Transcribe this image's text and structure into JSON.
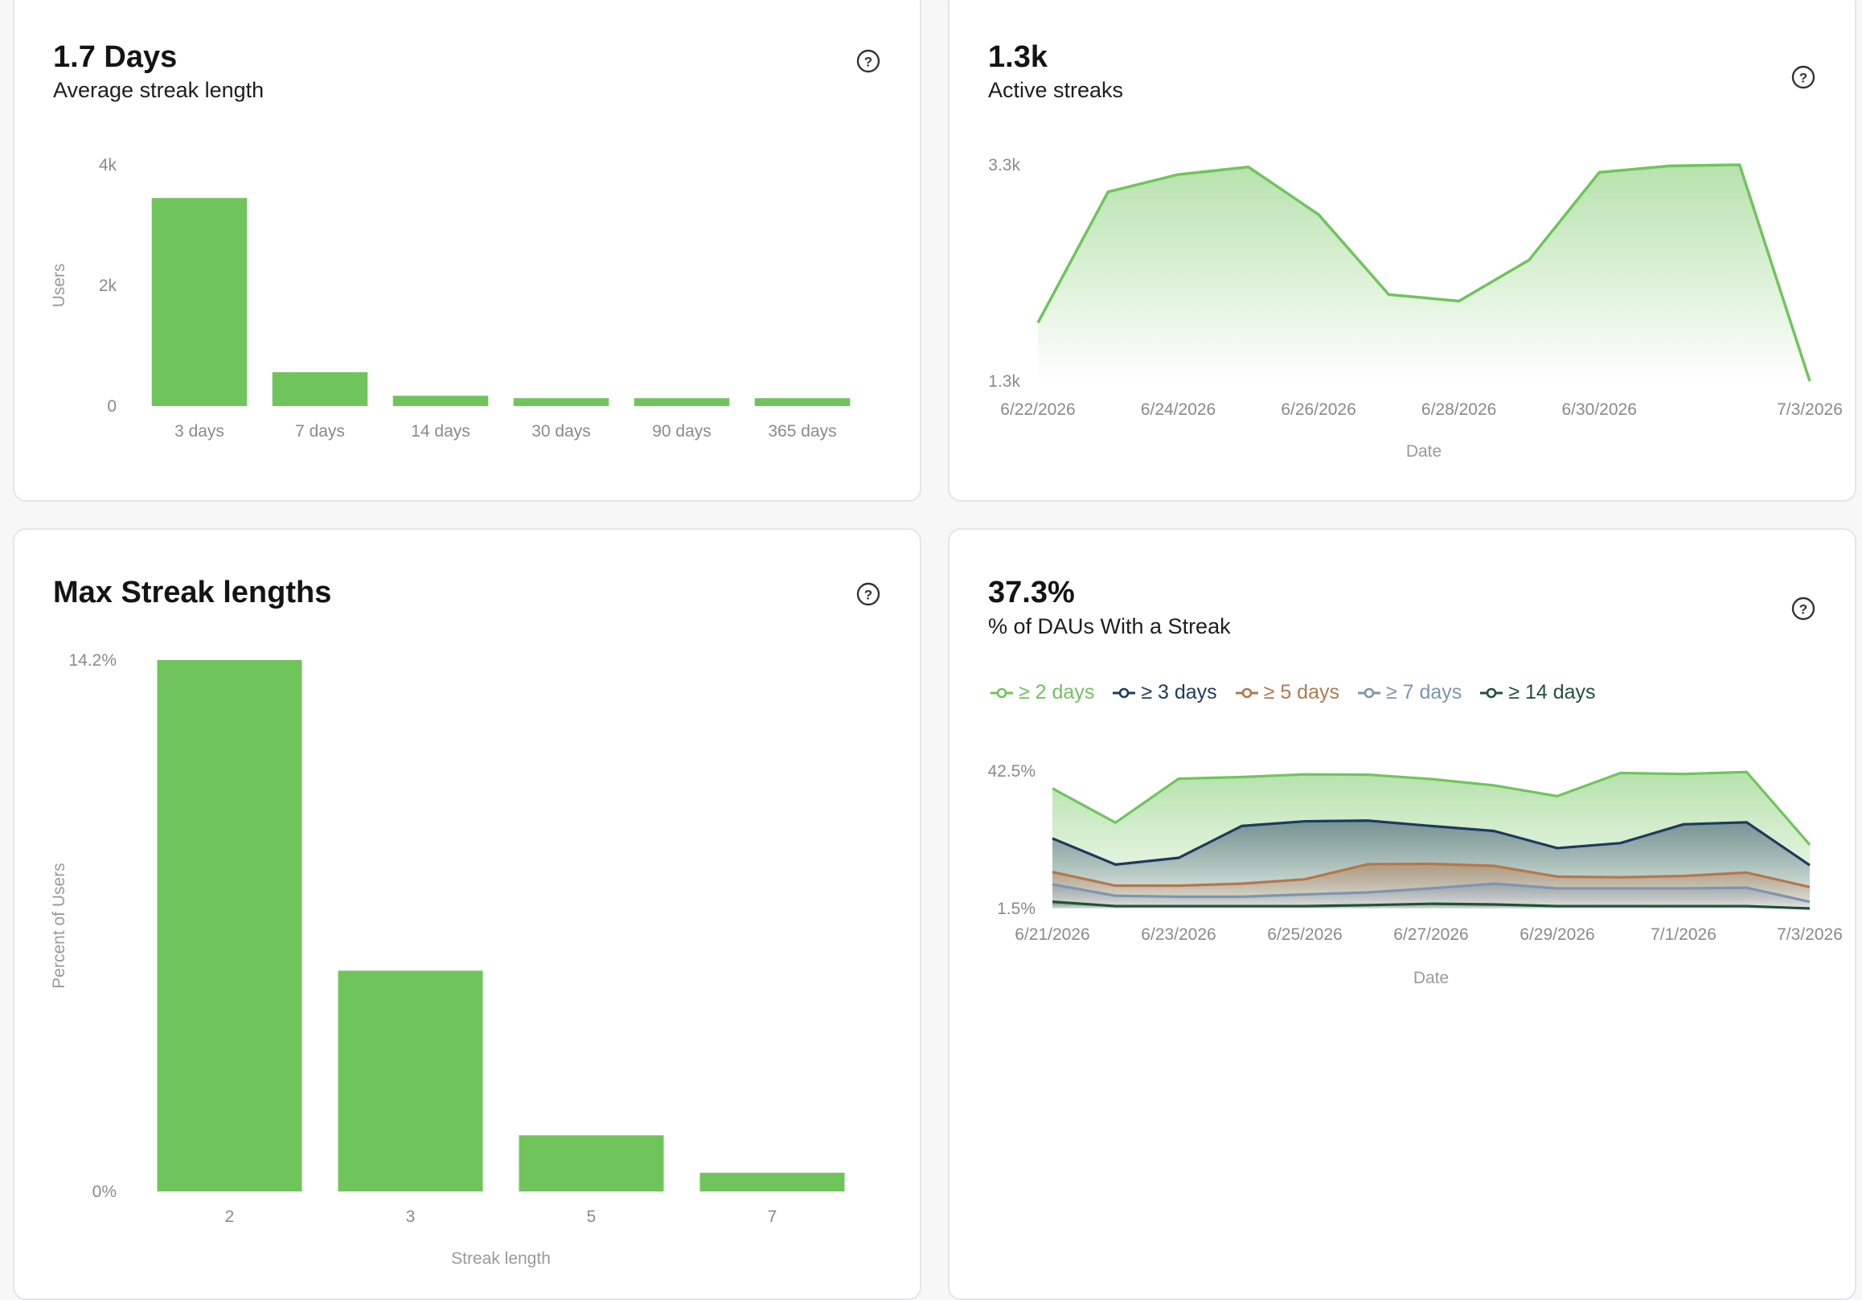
{
  "cards": {
    "streak_length": {
      "title": "1.7 Days",
      "subtitle": "Average streak length",
      "y_label": "Users",
      "x_label": ""
    },
    "active_streaks": {
      "title": "1.3k",
      "subtitle": "Active streaks",
      "x_label": "Date"
    },
    "max_streak": {
      "title": "Max Streak lengths",
      "y_label": "Percent of Users",
      "x_label": "Streak length"
    },
    "dau_streak": {
      "title": "37.3%",
      "subtitle": "% of DAUs With a Streak",
      "x_label": "Date"
    }
  },
  "chart_data": [
    {
      "id": "streak_length",
      "type": "bar",
      "categories": [
        "3 days",
        "7 days",
        "14 days",
        "30 days",
        "90 days",
        "365 days"
      ],
      "values": [
        3450,
        560,
        170,
        130,
        130,
        130
      ],
      "ylim": [
        0,
        4000
      ],
      "yticks": [
        0,
        2000,
        4000
      ],
      "ytick_labels": [
        "0",
        "2k",
        "4k"
      ],
      "ylabel": "Users",
      "color": "#6fc55b",
      "grid": false
    },
    {
      "id": "active_streaks",
      "type": "area",
      "x": [
        "6/22/2026",
        "6/23/2026",
        "6/24/2026",
        "6/25/2026",
        "6/26/2026",
        "6/27/2026",
        "6/28/2026",
        "6/29/2026",
        "6/30/2026",
        "7/1/2026",
        "7/2/2026",
        "7/3/2026"
      ],
      "values": [
        1840,
        3050,
        3210,
        3280,
        2840,
        2100,
        2040,
        2420,
        3230,
        3290,
        3300,
        1300
      ],
      "xtick_labels": [
        "6/22/2026",
        "6/24/2026",
        "6/26/2026",
        "6/28/2026",
        "6/30/2026",
        "7/3/2026"
      ],
      "ylim": [
        1300,
        3300
      ],
      "ytick_labels": [
        "1.3k",
        "3.3k"
      ],
      "xlabel": "Date",
      "color": "#6fc55b",
      "grid": false
    },
    {
      "id": "max_streak",
      "type": "bar",
      "categories": [
        "2",
        "3",
        "5",
        "7"
      ],
      "values": [
        14.2,
        5.9,
        1.5,
        0.5
      ],
      "ylim": [
        0,
        14.2
      ],
      "ytick_labels": [
        "0%",
        "14.2%"
      ],
      "xlabel": "Streak length",
      "ylabel": "Percent of Users",
      "color": "#6fc55b",
      "grid": false
    },
    {
      "id": "dau_streak",
      "type": "area",
      "x": [
        "6/21/2026",
        "6/22/2026",
        "6/23/2026",
        "6/24/2026",
        "6/25/2026",
        "6/26/2026",
        "6/27/2026",
        "6/28/2026",
        "6/29/2026",
        "6/30/2026",
        "7/1/2026",
        "7/2/2026",
        "7/3/2026"
      ],
      "xtick_labels": [
        "6/21/2026",
        "6/23/2026",
        "6/25/2026",
        "6/27/2026",
        "6/29/2026",
        "7/1/2026",
        "7/3/2026"
      ],
      "ylim": [
        1.5,
        42.5
      ],
      "ytick_labels": [
        "1.5%",
        "42.5%"
      ],
      "xlabel": "Date",
      "legend_position": "top-left",
      "grid": false,
      "series": [
        {
          "name": "≥ 2 days",
          "color": "#6fc55b",
          "values": [
            37.3,
            27.1,
            40.2,
            40.7,
            41.5,
            41.4,
            40.1,
            38.2,
            35.0,
            41.9,
            41.6,
            42.2,
            20.5
          ]
        },
        {
          "name": "≥ 3 days",
          "color": "#1e3a5f",
          "values": [
            22.4,
            14.6,
            16.6,
            26.1,
            27.5,
            27.7,
            26.1,
            24.6,
            19.5,
            21.0,
            26.6,
            27.2,
            14.4
          ]
        },
        {
          "name": "≥ 5 days",
          "color": "#b5774a",
          "values": [
            12.4,
            8.3,
            8.3,
            8.9,
            10.2,
            14.7,
            14.8,
            14.2,
            11.0,
            10.8,
            11.2,
            12.2,
            7.9
          ]
        },
        {
          "name": "≥ 7 days",
          "color": "#7d95b2",
          "values": [
            8.7,
            5.3,
            5.0,
            5.0,
            5.7,
            6.3,
            7.5,
            8.9,
            7.5,
            7.5,
            7.5,
            7.7,
            3.5
          ]
        },
        {
          "name": "≥ 14 days",
          "color": "#1f5238",
          "values": [
            3.5,
            2.2,
            2.2,
            2.2,
            2.2,
            2.5,
            2.9,
            2.7,
            2.2,
            2.2,
            2.2,
            2.2,
            1.5
          ]
        }
      ]
    }
  ]
}
